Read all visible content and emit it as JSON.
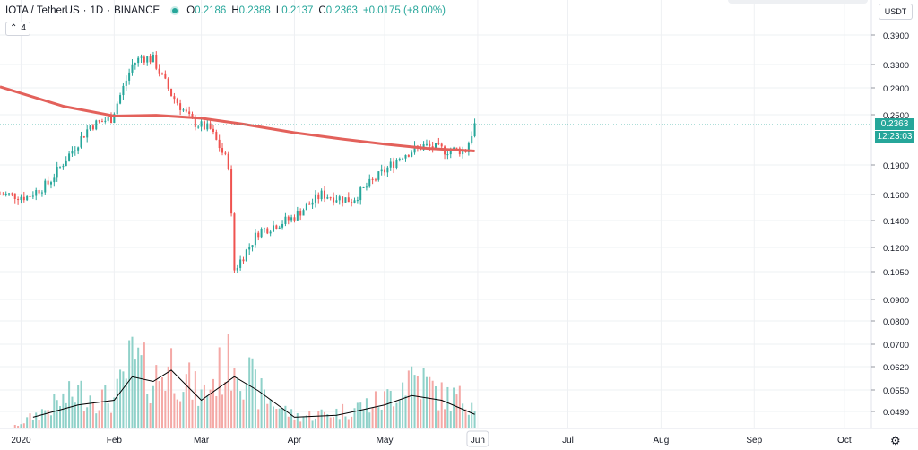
{
  "legend": {
    "symbol": "IOTA / TetherUS",
    "interval": "1D",
    "exchange": "BINANCE",
    "o_label": "O",
    "o_value": "0.2186",
    "h_label": "H",
    "h_value": "0.2388",
    "l_label": "L",
    "l_value": "0.2137",
    "c_label": "C",
    "c_value": "0.2363",
    "change": "+0.0175 (+8.00%)"
  },
  "collapse_button": {
    "count": "4"
  },
  "price_axis": {
    "currency": "USDT",
    "ticks": [
      "0.3900",
      "0.3300",
      "0.2900",
      "0.2500",
      "0.1900",
      "0.1600",
      "0.1400",
      "0.1200",
      "0.1050",
      "0.0900",
      "0.0800",
      "0.0700",
      "0.0620",
      "0.0550",
      "0.0490"
    ],
    "last_price": "0.2363",
    "countdown": "12:23:03"
  },
  "colors": {
    "up": "#26a69a",
    "down": "#ef5350",
    "up_volume": "#8fd1c9",
    "down_volume": "#f4a9a6",
    "ma": "#e3615b",
    "grid": "#eef0f3",
    "volume_ma": "#000000"
  },
  "chart_data": {
    "type": "candlestick",
    "title": "IOTA / TetherUS · 1D · BINANCE",
    "y_scale": "log",
    "x_ticks": [
      "2020",
      "Feb",
      "Mar",
      "Apr",
      "May",
      "Jun",
      "Jul",
      "Aug",
      "Sep",
      "Oct"
    ],
    "x_range": [
      "2019-12-25",
      "2020-10-10"
    ],
    "y_ticks": [
      0.39,
      0.33,
      0.29,
      0.25,
      0.19,
      0.16,
      0.14,
      0.12,
      0.105,
      0.09,
      0.08
    ],
    "last_price": 0.2363,
    "price_series": {
      "name": "IOTA/USDT close",
      "x": [
        "2019-12-27",
        "2020-01-03",
        "2020-01-10",
        "2020-01-17",
        "2020-01-24",
        "2020-01-31",
        "2020-02-07",
        "2020-02-10",
        "2020-02-14",
        "2020-02-20",
        "2020-02-27",
        "2020-03-04",
        "2020-03-10",
        "2020-03-12",
        "2020-03-20",
        "2020-03-31",
        "2020-04-10",
        "2020-04-20",
        "2020-04-30",
        "2020-05-07",
        "2020-05-14",
        "2020-05-21",
        "2020-05-28",
        "2020-05-31"
      ],
      "close": [
        0.16,
        0.158,
        0.17,
        0.2,
        0.235,
        0.245,
        0.33,
        0.345,
        0.34,
        0.28,
        0.24,
        0.23,
        0.19,
        0.105,
        0.13,
        0.14,
        0.16,
        0.155,
        0.18,
        0.2,
        0.21,
        0.205,
        0.205,
        0.236
      ]
    },
    "moving_average": {
      "x": [
        "2019-12-25",
        "2020-01-15",
        "2020-02-01",
        "2020-02-15",
        "2020-03-01",
        "2020-03-15",
        "2020-04-01",
        "2020-04-15",
        "2020-05-01",
        "2020-05-15",
        "2020-05-31"
      ],
      "values": [
        0.292,
        0.262,
        0.248,
        0.249,
        0.245,
        0.237,
        0.226,
        0.219,
        0.212,
        0.207,
        0.204
      ]
    },
    "volume": {
      "y_scale": "relative",
      "x": [
        "2020-01-05",
        "2020-01-20",
        "2020-02-01",
        "2020-02-07",
        "2020-02-14",
        "2020-02-20",
        "2020-03-01",
        "2020-03-12",
        "2020-03-20",
        "2020-04-01",
        "2020-04-15",
        "2020-05-01",
        "2020-05-10",
        "2020-05-20",
        "2020-05-31"
      ],
      "values": [
        0.15,
        0.45,
        0.35,
        0.85,
        0.6,
        0.8,
        0.4,
        0.95,
        0.45,
        0.15,
        0.2,
        0.35,
        0.7,
        0.4,
        0.35
      ],
      "ma_values": [
        0.12,
        0.25,
        0.3,
        0.55,
        0.5,
        0.62,
        0.3,
        0.55,
        0.4,
        0.12,
        0.14,
        0.25,
        0.35,
        0.3,
        0.15
      ]
    },
    "xlabel": "",
    "ylabel": ""
  }
}
